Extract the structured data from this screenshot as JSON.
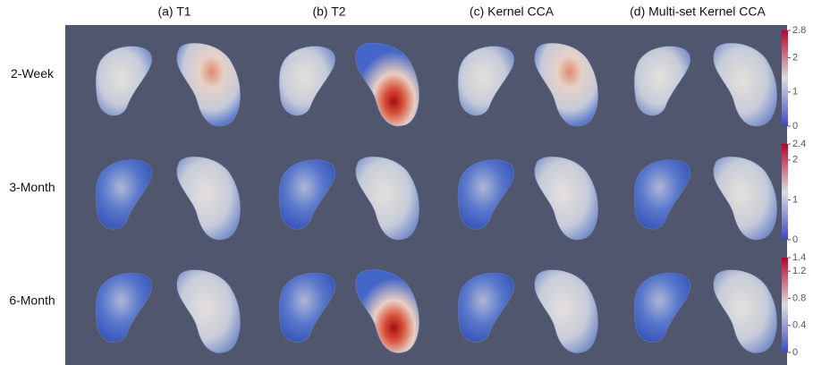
{
  "header": {
    "columns": [
      "(a) T1",
      "(b) T2",
      "(c) Kernel CCA",
      "(d) Multi-set Kernel CCA"
    ]
  },
  "rows": [
    {
      "label": "2-Week",
      "colorbar": {
        "range": [
          0,
          2.8
        ],
        "ticks": [
          2.8,
          2,
          1,
          0
        ]
      }
    },
    {
      "label": "3-Month",
      "colorbar": {
        "range": [
          0,
          2.4
        ],
        "ticks": [
          2.4,
          2,
          1,
          0
        ]
      }
    },
    {
      "label": "6-Month",
      "colorbar": {
        "range": [
          0,
          1.4
        ],
        "ticks": [
          1.4,
          1.2,
          0.8,
          0.4,
          0
        ]
      }
    }
  ]
}
